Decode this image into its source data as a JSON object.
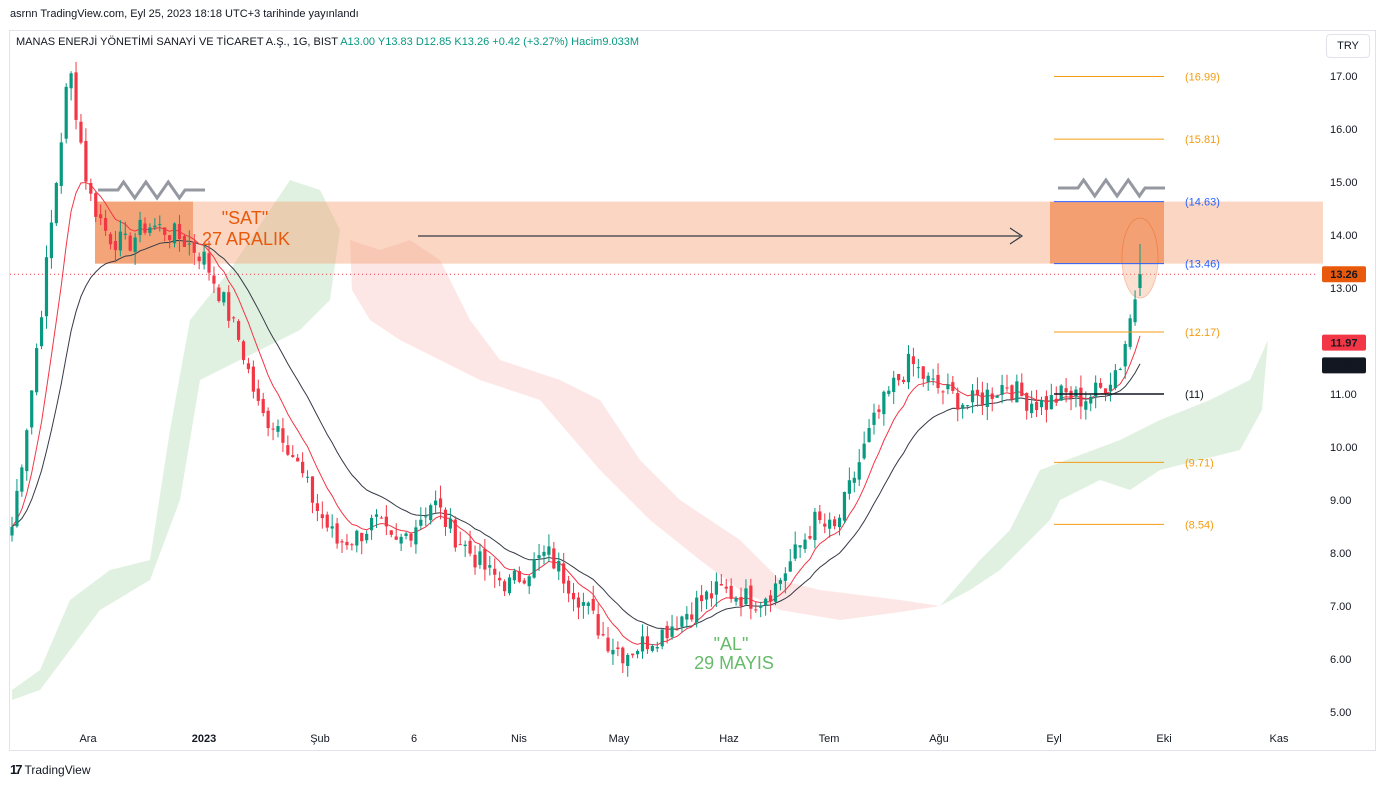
{
  "header": {
    "publish_note": "asrnn TradingView.com, Eyl 25, 2023 18:18 UTC+3 tarihinde yayınlandı",
    "symbol": "MANAS ENERJİ YÖNETİMİ SANAYİ VE TİCARET A.Ş., 1G, BIST",
    "ohlc": "A13.00 Y13.83 D12.85 K13.26 +0.42 (+3.27%) Hacim9.033M",
    "currency_button": "TRY",
    "footer_brand": "TradingView",
    "footer_mark": "17"
  },
  "colors": {
    "up": "#089981",
    "down": "#f23645",
    "ema_fast": "#f23645",
    "ema_slow": "#363a45",
    "cloud_bull": "#c8e6c9",
    "cloud_bear": "#fcdcdc",
    "zone": "#f5a57a",
    "zone_dark": "#ef8850",
    "sat_text": "#e8590c",
    "al_text": "#66bb6a",
    "fib_orange": "#f39c12",
    "fib_blue": "#2962ff",
    "fib_gray": "#131722"
  },
  "chart_data": {
    "type": "candlestick",
    "ylim": [
      4.6,
      17.6
    ],
    "y_ticks": [
      "17.00",
      "16.00",
      "15.00",
      "14.00",
      "13.00",
      "12.00",
      "11.00",
      "10.00",
      "9.00",
      "8.00",
      "7.00",
      "6.00",
      "5.00"
    ],
    "x_ticks": [
      "Ara",
      "2023",
      "Şub",
      "6",
      "Nis",
      "May",
      "Haz",
      "Tem",
      "Ağu",
      "Eyl",
      "Eki",
      "Kas"
    ],
    "last_price": "13.26",
    "ema_fast_value": "11.97",
    "ema_slow_value": "11.54",
    "fib_levels": [
      {
        "value": 16.99,
        "label": "(16.99)"
      },
      {
        "value": 15.81,
        "label": "(15.81)"
      },
      {
        "value": 14.63,
        "label": "(14.63)"
      },
      {
        "value": 13.46,
        "label": "(13.46)"
      },
      {
        "value": 12.17,
        "label": "(12.17)"
      },
      {
        "value": 11.0,
        "label": "(11)"
      },
      {
        "value": 9.71,
        "label": "(9.71)"
      },
      {
        "value": 8.54,
        "label": "(8.54)"
      }
    ],
    "resistance_zone": [
      13.46,
      14.63
    ],
    "annotations": {
      "sell_label": "\"SAT\"",
      "sell_date": "27 ARALIK",
      "buy_label": "\"AL\"",
      "buy_date": "29 MAYIS"
    },
    "close_path": [
      8.5,
      11.0,
      14.0,
      17.2,
      14.8,
      14.0,
      13.8,
      14.2,
      14.1,
      13.9,
      13.6,
      12.8,
      11.9,
      10.6,
      10.4,
      9.6,
      8.8,
      8.2,
      8.3,
      8.6,
      8.1,
      8.5,
      9.0,
      8.4,
      8.0,
      7.6,
      7.4,
      7.7,
      8.0,
      7.5,
      7.0,
      6.4,
      6.1,
      6.3,
      6.5,
      6.8,
      7.1,
      7.3,
      7.2,
      7.1,
      7.4,
      8.0,
      8.6,
      8.4,
      9.4,
      10.4,
      11.1,
      11.6,
      11.2,
      11.0,
      10.8,
      11.0,
      11.2,
      10.9,
      10.8,
      11.0,
      10.9,
      11.1,
      11.6,
      13.3
    ]
  }
}
